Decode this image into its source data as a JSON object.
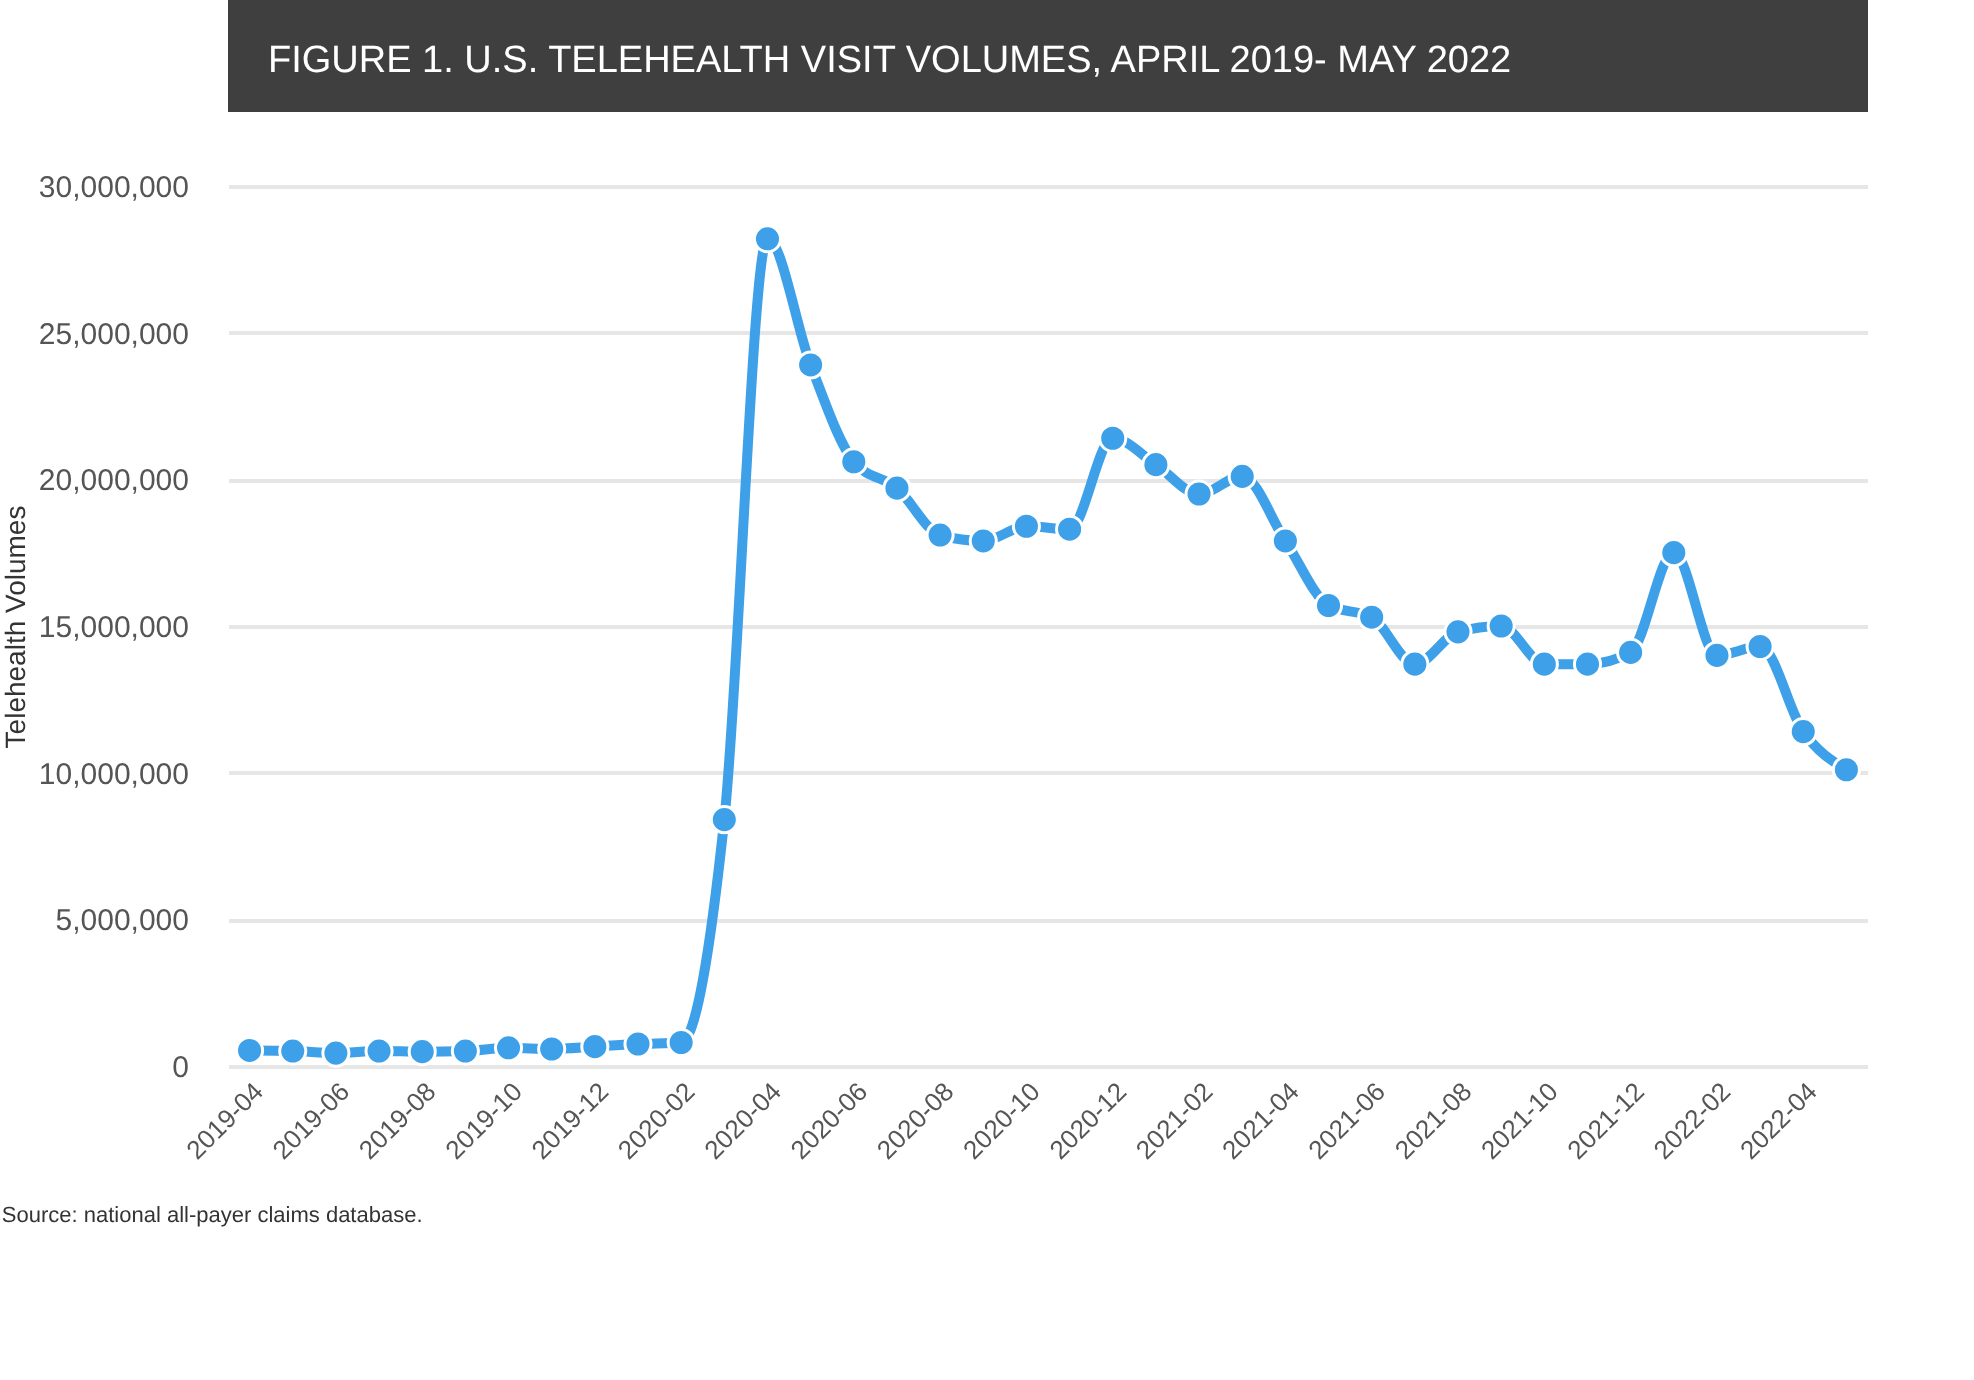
{
  "chart_data": {
    "type": "line",
    "title": "FIGURE 1.  U.S. TELEHEALTH VISIT VOLUMES, APRIL 2019- MAY 2022",
    "ylabel": "Telehealth Volumes",
    "annotations": [
      "Source: national all-payer claims database."
    ],
    "categories": [
      "2019-04",
      null,
      "2019-06",
      null,
      "2019-08",
      null,
      "2019-10",
      null,
      "2019-12",
      null,
      "2020-02",
      null,
      "2020-04",
      null,
      "2020-06",
      null,
      "2020-08",
      null,
      "2020-10",
      null,
      "2020-12",
      null,
      "2021-02",
      null,
      "2021-04",
      null,
      "2021-06",
      null,
      "2021-08",
      null,
      "2021-10",
      null,
      "2021-12",
      null,
      "2022-02",
      null,
      "2022-04",
      null
    ],
    "series": [
      {
        "color": "#3da0e8",
        "values": [
          530000,
          510000,
          440000,
          510000,
          490000,
          510000,
          620000,
          580000,
          660000,
          750000,
          800000,
          8400000,
          28200000,
          23900000,
          20600000,
          19700000,
          18100000,
          17900000,
          18400000,
          18300000,
          21400000,
          20500000,
          19500000,
          20100000,
          17900000,
          15700000,
          15300000,
          13700000,
          14800000,
          15000000,
          13700000,
          13700000,
          14100000,
          17500000,
          14000000,
          14300000,
          11400000,
          10100000
        ]
      }
    ],
    "ylim": [
      0,
      30000000
    ],
    "yticks": [
      0,
      {
        "value": 5000000,
        "label": "5,000,000"
      },
      {
        "value": 10000000,
        "label": "10,000,000"
      },
      {
        "value": 15000000,
        "label": "15,000,000"
      },
      {
        "value": 20000000,
        "label": "20,000,000"
      },
      {
        "value": 25000000,
        "label": "25,000,000"
      },
      {
        "value": 30000000,
        "label": "30,000,000"
      }
    ],
    "grid": "y",
    "marker": "circle",
    "line_style": "solid"
  }
}
